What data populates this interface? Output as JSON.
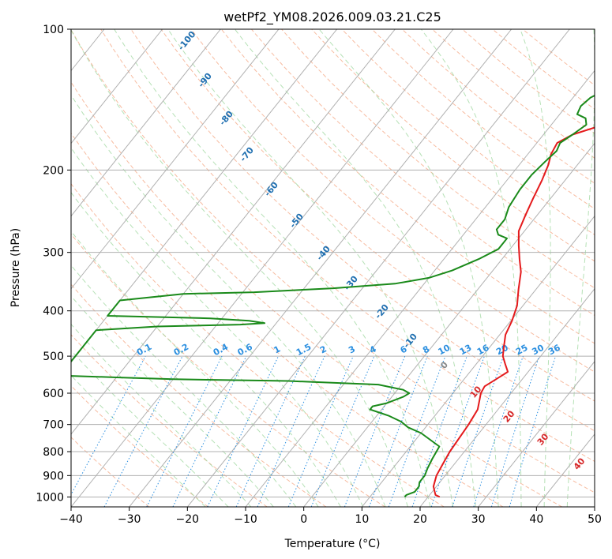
{
  "chart_data": {
    "type": "line",
    "title": "wetPf2_YM08.2026.009.03.21.C25",
    "xlabel": "Temperature (°C)",
    "ylabel": "Pressure (hPa)",
    "xlim": [
      -40,
      50
    ],
    "ylim": [
      1050,
      100
    ],
    "y_scale": "log",
    "grid": true,
    "x_ticks": [
      "−40",
      "−30",
      "−20",
      "−10",
      "0",
      "10",
      "20",
      "30",
      "40",
      "50"
    ],
    "y_ticks": [
      "100",
      "200",
      "300",
      "400",
      "500",
      "600",
      "700",
      "800",
      "900",
      "1000"
    ],
    "y_tick_values": [
      100,
      200,
      300,
      400,
      500,
      600,
      700,
      800,
      900,
      1000
    ],
    "isotherm_labels": [
      "-100",
      "-90",
      "-80",
      "-70",
      "-60",
      "-50",
      "-40",
      "-30",
      "-20",
      "-10"
    ],
    "isotherm_values": [
      -100,
      -90,
      -80,
      -70,
      -60,
      -50,
      -40,
      -30,
      -20,
      -10
    ],
    "mixing_ratio_labels": [
      "0.1",
      "0.2",
      "0.4",
      "0.6",
      "1",
      "1.5",
      "2",
      "3",
      "4",
      "6",
      "8",
      "10",
      "13",
      "16",
      "20",
      "25",
      "30",
      "36"
    ],
    "mixing_ratio_values": [
      0.1,
      0.2,
      0.4,
      0.6,
      1,
      1.5,
      2,
      3,
      4,
      6,
      8,
      10,
      13,
      16,
      20,
      25,
      30,
      36
    ],
    "moist_adiabat_labels": [
      "0",
      "10",
      "20",
      "30",
      "40"
    ],
    "moist_adiabat_values": [
      0,
      10,
      20,
      30,
      40
    ],
    "colors": {
      "temperature": "#e41a1c",
      "dewpoint": "#1a8a1a",
      "isotherm_label": "#1f6fb0",
      "mixing_ratio": "#2b8fe0",
      "moist_label_zero": "#888888",
      "moist_label": "#d62728",
      "dry_adiabat": "#f4a582",
      "moist_adiabat": "#9ed79e",
      "grid": "#b0b0b0"
    },
    "series": [
      {
        "key": "temperature",
        "points": [
          [
            22,
            1000
          ],
          [
            21,
            990
          ],
          [
            19.5,
            950
          ],
          [
            18.5,
            900
          ],
          [
            18,
            850
          ],
          [
            17.5,
            800
          ],
          [
            17,
            700
          ],
          [
            16.5,
            650
          ],
          [
            15.5,
            620
          ],
          [
            14.8,
            600
          ],
          [
            14.5,
            580
          ],
          [
            15.5,
            560
          ],
          [
            16.5,
            540
          ],
          [
            15,
            520
          ],
          [
            13.5,
            500
          ],
          [
            12.5,
            480
          ],
          [
            11,
            450
          ],
          [
            10.2,
            420
          ],
          [
            9,
            390
          ],
          [
            7,
            360
          ],
          [
            5,
            330
          ],
          [
            3,
            310
          ],
          [
            1,
            290
          ],
          [
            -1,
            270
          ],
          [
            -2,
            250
          ],
          [
            -3,
            230
          ],
          [
            -4,
            210
          ],
          [
            -5,
            195
          ],
          [
            -6,
            185
          ],
          [
            -6.5,
            175
          ],
          [
            -5,
            168
          ],
          [
            -2,
            162
          ],
          [
            2,
            158
          ],
          [
            5,
            153
          ],
          [
            7,
            147
          ],
          [
            9,
            140
          ],
          [
            11,
            133
          ],
          [
            13,
            125
          ],
          [
            15,
            116
          ],
          [
            16.5,
            110
          ],
          [
            17.5,
            104
          ],
          [
            18,
            100
          ]
        ]
      },
      {
        "key": "dewpoint",
        "points": [
          [
            16,
            1000
          ],
          [
            16,
            990
          ],
          [
            17,
            975
          ],
          [
            17,
            950
          ],
          [
            16.5,
            930
          ],
          [
            16.5,
            900
          ],
          [
            16,
            870
          ],
          [
            15.5,
            830
          ],
          [
            15,
            780
          ],
          [
            10,
            730
          ],
          [
            7,
            710
          ],
          [
            5,
            690
          ],
          [
            2,
            670
          ],
          [
            0,
            660
          ],
          [
            -2,
            650
          ],
          [
            -2,
            640
          ],
          [
            0,
            630
          ],
          [
            1,
            620
          ],
          [
            2,
            610
          ],
          [
            2.5,
            600
          ],
          [
            1,
            590
          ],
          [
            -4,
            575
          ],
          [
            -20,
            565
          ],
          [
            -40,
            560
          ],
          [
            -50,
            555
          ],
          [
            -60,
            550
          ],
          [
            -60,
            440
          ],
          [
            -50,
            432
          ],
          [
            -36,
            428
          ],
          [
            -32,
            425
          ],
          [
            -35,
            420
          ],
          [
            -42,
            415
          ],
          [
            -60,
            410
          ],
          [
            -60,
            380
          ],
          [
            -50,
            368
          ],
          [
            -38,
            365
          ],
          [
            -25,
            358
          ],
          [
            -15,
            350
          ],
          [
            -10,
            340
          ],
          [
            -7,
            328
          ],
          [
            -4,
            310
          ],
          [
            -2,
            295
          ],
          [
            -2,
            280
          ],
          [
            -4,
            275
          ],
          [
            -5,
            268
          ],
          [
            -5,
            255
          ],
          [
            -6,
            240
          ],
          [
            -6.5,
            220
          ],
          [
            -6.5,
            205
          ],
          [
            -6,
            192
          ],
          [
            -5.5,
            182
          ],
          [
            -6,
            175
          ],
          [
            -5,
            168
          ],
          [
            -4,
            160
          ],
          [
            -5,
            155
          ],
          [
            -7,
            152
          ],
          [
            -7.5,
            146
          ],
          [
            -7,
            140
          ],
          [
            -5.5,
            135
          ],
          [
            -5,
            128
          ],
          [
            -4.5,
            120
          ],
          [
            -3,
            112
          ],
          [
            -1.5,
            105
          ],
          [
            -0.5,
            100
          ]
        ]
      }
    ]
  }
}
